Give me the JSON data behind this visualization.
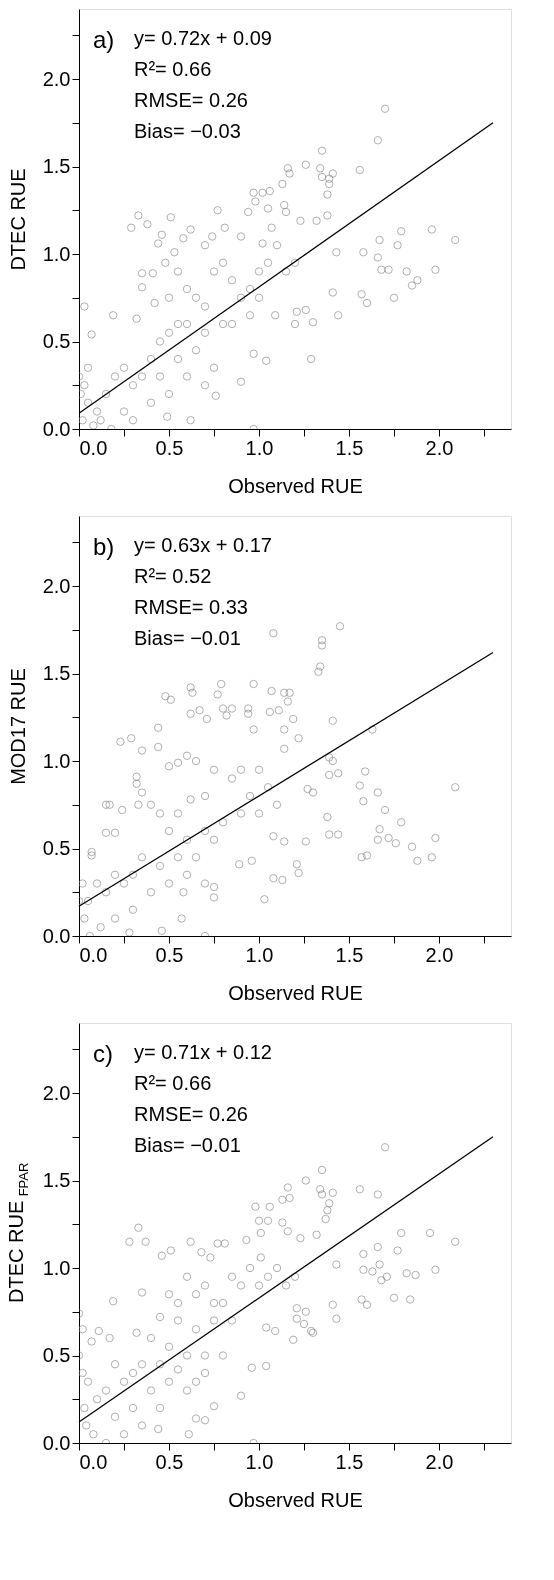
{
  "chart_data": [
    {
      "type": "scatter",
      "xlabel": "Observed RUE",
      "ylabel": "DTEC RUE",
      "xlim": [
        0,
        2.4
      ],
      "ylim": [
        0,
        2.4
      ],
      "grid": false,
      "xticks": [
        {
          "value": 0,
          "label": "0.0"
        },
        {
          "value": 0.25,
          "label": null
        },
        {
          "value": 0.5,
          "label": "0.5"
        },
        {
          "value": 0.75,
          "label": null
        },
        {
          "value": 1,
          "label": "1.0"
        },
        {
          "value": 1.25,
          "label": null
        },
        {
          "value": 1.5,
          "label": "1.5"
        },
        {
          "value": 1.75,
          "label": null
        },
        {
          "value": 2,
          "label": "2.0"
        },
        {
          "value": 2.25,
          "label": null
        }
      ],
      "yticks": [
        {
          "value": 0,
          "label": "0.0"
        },
        {
          "value": 0.25,
          "label": null
        },
        {
          "value": 0.5,
          "label": "0.5"
        },
        {
          "value": 0.75,
          "label": null
        },
        {
          "value": 1,
          "label": "1.0"
        },
        {
          "value": 1.25,
          "label": null
        },
        {
          "value": 1.5,
          "label": "1.5"
        },
        {
          "value": 1.75,
          "label": null
        },
        {
          "value": 2,
          "label": "2.0"
        },
        {
          "value": 2.25,
          "label": null
        }
      ],
      "annotations": [
        "a)",
        "y= 0.72x + 0.09",
        "R²= 0.66",
        "RMSE= 0.26",
        "Bias= −0.03"
      ],
      "series": [
        {
          "color": "#808080",
          "x": [
            1.7,
            1.66,
            1.35,
            1.26,
            1.16,
            1.34,
            1.56,
            1.41,
            1.17,
            1.35,
            1.39,
            1.39,
            1.13,
            1.38,
            0.97,
            1.02,
            1.06,
            0.98,
            1.14,
            1.05,
            0.33,
            0.77,
            0.94,
            1.15,
            0.51,
            1.38,
            1.32,
            1.23,
            0.29,
            0.38,
            0.81,
            0.62,
            1.07,
            1.96,
            1.79,
            0.46,
            0.74,
            0.58,
            0.9,
            2.09,
            1.67,
            0.44,
            1.77,
            1.02,
            1.43,
            0.53,
            1.58,
            1.66,
            1.68,
            1.72,
            1.82,
            1.98,
            1.88,
            1.85,
            1.41,
            1.57,
            1.6,
            1.75,
            1.44,
            1.29,
            1.04,
            1.2,
            1.3,
            1.26,
            1.21,
            1.09,
            0.35,
            0.41,
            0.35,
            0.42,
            0.32,
            0.07,
            0.03,
            0.19,
            0.9,
            0.97,
            0.76,
            0.62,
            0.49,
            0.97,
            0.6,
            0.65,
            0.7,
            0.75,
            0.8,
            0.85,
            0.9,
            0.55,
            0.5,
            0.45,
            0.4,
            0.35,
            0.3,
            0.25,
            0.2,
            0.15,
            0.1,
            0.05,
            0.02,
            0.0,
            0.01,
            0.03,
            0.05,
            0.08,
            0.12,
            0.18,
            0.25,
            0.3,
            0.4,
            0.5,
            0.6,
            0.7,
            0.75,
            0.65,
            0.55,
            0.45,
            0.85,
            0.95,
            1.0,
            1.05,
            1.1,
            1.15,
            1.2,
            1.0,
            0.95,
            0.8,
            0.7,
            0.6,
            0.5,
            0.48,
            0.55,
            0.7
          ],
          "values": [
            1.83,
            1.65,
            1.59,
            1.51,
            1.49,
            1.49,
            1.48,
            1.46,
            1.46,
            1.44,
            1.43,
            1.4,
            1.4,
            1.34,
            1.35,
            1.35,
            1.36,
            1.3,
            1.28,
            1.26,
            1.22,
            1.25,
            1.24,
            1.24,
            1.21,
            1.22,
            1.19,
            1.19,
            1.15,
            1.17,
            1.15,
            1.14,
            1.15,
            1.14,
            1.13,
            1.11,
            1.1,
            1.09,
            1.1,
            1.08,
            1.08,
            1.06,
            1.05,
            1.06,
            1.01,
            1.01,
            1.01,
            0.98,
            0.91,
            0.91,
            0.9,
            0.91,
            0.85,
            0.82,
            0.78,
            0.77,
            0.72,
            0.75,
            0.65,
            0.4,
            0.39,
            0.6,
            0.61,
            0.68,
            0.67,
            0.65,
            0.89,
            0.89,
            0.81,
            0.72,
            0.63,
            0.54,
            0.7,
            0.65,
            0.27,
            0.43,
            0.19,
            0.05,
            0.07,
            0.0,
            0.8,
            0.75,
            0.7,
            0.9,
            0.95,
            0.85,
            0.75,
            0.6,
            0.55,
            0.5,
            0.4,
            0.3,
            0.25,
            0.35,
            0.3,
            0.2,
            0.1,
            0.15,
            0.05,
            0.3,
            0.2,
            0.25,
            0.35,
            0.02,
            0.05,
            0.0,
            0.1,
            0.05,
            0.15,
            0.2,
            0.3,
            0.25,
            0.35,
            0.45,
            0.4,
            0.3,
            0.6,
            0.8,
            0.9,
            0.95,
            1.05,
            0.9,
            0.95,
            0.75,
            0.65,
            0.6,
            0.55,
            0.6,
            0.75,
            0.95,
            0.9,
            1.05
          ]
        },
        {
          "type": "line",
          "color": "#000000",
          "x": [
            0,
            2.3
          ],
          "values": [
            0.09,
            1.75
          ]
        }
      ]
    },
    {
      "type": "scatter",
      "xlabel": "Observed RUE",
      "ylabel": "MOD17 RUE",
      "xlim": [
        0,
        2.4
      ],
      "ylim": [
        0,
        2.4
      ],
      "grid": false,
      "xticks": [
        {
          "value": 0,
          "label": "0.0"
        },
        {
          "value": 0.25,
          "label": null
        },
        {
          "value": 0.5,
          "label": "0.5"
        },
        {
          "value": 0.75,
          "label": null
        },
        {
          "value": 1,
          "label": "1.0"
        },
        {
          "value": 1.25,
          "label": null
        },
        {
          "value": 1.5,
          "label": "1.5"
        },
        {
          "value": 1.75,
          "label": null
        },
        {
          "value": 2,
          "label": "2.0"
        },
        {
          "value": 2.25,
          "label": null
        }
      ],
      "yticks": [
        {
          "value": 0,
          "label": "0.0"
        },
        {
          "value": 0.25,
          "label": null
        },
        {
          "value": 0.5,
          "label": "0.5"
        },
        {
          "value": 0.75,
          "label": null
        },
        {
          "value": 1,
          "label": "1.0"
        },
        {
          "value": 1.25,
          "label": null
        },
        {
          "value": 1.5,
          "label": "1.5"
        },
        {
          "value": 1.75,
          "label": null
        },
        {
          "value": 2,
          "label": "2.0"
        },
        {
          "value": 2.25,
          "label": null
        }
      ],
      "annotations": [
        "b)",
        "y= 0.63x + 0.17",
        "R²= 0.52",
        "RMSE= 0.33",
        "Bias= −0.01"
      ],
      "series": [
        {
          "color": "#808080",
          "x": [
            1.45,
            1.08,
            1.35,
            1.35,
            1.34,
            1.33,
            0.79,
            0.97,
            0.62,
            0.63,
            0.48,
            0.51,
            0.77,
            1.07,
            1.14,
            1.17,
            1.16,
            0.8,
            0.85,
            0.94,
            1.11,
            0.62,
            1.06,
            0.67,
            0.94,
            0.82,
            0.71,
            1.41,
            1.19,
            0.44,
            0.97,
            1.63,
            1.14,
            0.23,
            0.29,
            1.22,
            0.35,
            0.44,
            1.14,
            1.39,
            1.41,
            1.44,
            1.59,
            1.39,
            1.56,
            1.66,
            1.58,
            1.7,
            1.79,
            1.67,
            1.66,
            1.72,
            1.76,
            1.98,
            1.85,
            1.88,
            1.96,
            1.57,
            1.6,
            2.09,
            1.38,
            1.39,
            1.44,
            1.27,
            1.3,
            1.26,
            1.21,
            1.22,
            1.13,
            1.08,
            1.03,
            1.08,
            1.14,
            0.89,
            0.96,
            0.75,
            0.57,
            0.46,
            0.7,
            0.15,
            0.17,
            0.15,
            0.2,
            0.24,
            0.07,
            0.07,
            0.32,
            0.32,
            0.35,
            0.33,
            0.5,
            0.55,
            0.6,
            0.65,
            0.75,
            0.85,
            0.9,
            1.0,
            1.05,
            0.95,
            0.7,
            0.62,
            0.55,
            0.45,
            0.4,
            0.5,
            0.6,
            0.7,
            0.8,
            0.9,
            1.0,
            1.1,
            0.75,
            0.65,
            0.55,
            0.45,
            0.35,
            0.3,
            0.25,
            0.2,
            0.15,
            0.1,
            0.05,
            0.02,
            0.0,
            0.03,
            0.06,
            0.12,
            0.2,
            0.3,
            0.4,
            0.5,
            0.6,
            0.7,
            0.75,
            0.58,
            0.28
          ],
          "values": [
            1.77,
            1.73,
            1.69,
            1.66,
            1.54,
            1.51,
            1.44,
            1.44,
            1.42,
            1.39,
            1.37,
            1.35,
            1.38,
            1.4,
            1.39,
            1.39,
            1.34,
            1.3,
            1.3,
            1.3,
            1.29,
            1.27,
            1.28,
            1.29,
            1.27,
            1.26,
            1.24,
            1.23,
            1.24,
            1.19,
            1.18,
            1.18,
            1.18,
            1.11,
            1.13,
            1.13,
            1.06,
            1.08,
            1.07,
            1.02,
            1.0,
            0.93,
            0.94,
            0.92,
            0.86,
            0.82,
            0.77,
            0.72,
            0.65,
            0.61,
            0.55,
            0.56,
            0.53,
            0.56,
            0.51,
            0.43,
            0.45,
            0.45,
            0.46,
            0.85,
            0.68,
            0.58,
            0.58,
            0.84,
            0.82,
            0.54,
            0.41,
            0.36,
            0.32,
            0.33,
            0.21,
            0.57,
            0.54,
            0.41,
            0.43,
            0.22,
            0.1,
            0.03,
            0.0,
            0.75,
            0.75,
            0.59,
            0.59,
            0.72,
            0.48,
            0.46,
            0.91,
            0.87,
            0.82,
            0.75,
            0.97,
            0.99,
            1.03,
            1.0,
            0.95,
            0.9,
            0.95,
            0.95,
            0.85,
            0.8,
            0.8,
            0.78,
            0.7,
            0.7,
            0.75,
            0.6,
            0.55,
            0.6,
            0.65,
            0.7,
            0.7,
            0.75,
            0.55,
            0.45,
            0.45,
            0.4,
            0.45,
            0.35,
            0.3,
            0.35,
            0.25,
            0.3,
            0.2,
            0.3,
            0.2,
            0.1,
            0.0,
            0.05,
            0.1,
            0.15,
            0.25,
            0.3,
            0.35,
            0.3,
            0.28,
            0.25,
            0.02
          ]
        },
        {
          "type": "line",
          "color": "#000000",
          "x": [
            0,
            2.3
          ],
          "values": [
            0.17,
            1.62
          ]
        }
      ]
    },
    {
      "type": "scatter",
      "xlabel": "Observed RUE",
      "ylabel": "DTEC RUE$_{FPAR}$",
      "xlim": [
        0,
        2.4
      ],
      "ylim": [
        0,
        2.4
      ],
      "grid": false,
      "xticks": [
        {
          "value": 0,
          "label": "0.0"
        },
        {
          "value": 0.25,
          "label": null
        },
        {
          "value": 0.5,
          "label": "0.5"
        },
        {
          "value": 0.75,
          "label": null
        },
        {
          "value": 1,
          "label": "1.0"
        },
        {
          "value": 1.25,
          "label": null
        },
        {
          "value": 1.5,
          "label": "1.5"
        },
        {
          "value": 1.75,
          "label": null
        },
        {
          "value": 2,
          "label": "2.0"
        },
        {
          "value": 2.25,
          "label": null
        }
      ],
      "yticks": [
        {
          "value": 0,
          "label": "0.0"
        },
        {
          "value": 0.25,
          "label": null
        },
        {
          "value": 0.5,
          "label": "0.5"
        },
        {
          "value": 0.75,
          "label": null
        },
        {
          "value": 1,
          "label": "1.0"
        },
        {
          "value": 1.25,
          "label": null
        },
        {
          "value": 1.5,
          "label": "1.5"
        },
        {
          "value": 1.75,
          "label": null
        },
        {
          "value": 2,
          "label": "2.0"
        },
        {
          "value": 2.25,
          "label": null
        }
      ],
      "annotations": [
        "c)",
        "y= 0.71x + 0.12",
        "R²= 0.66",
        "RMSE= 0.26",
        "Bias= −0.01"
      ],
      "series": [
        {
          "color": "#808080",
          "x": [
            1.7,
            1.35,
            1.26,
            1.16,
            1.56,
            1.34,
            1.41,
            1.66,
            1.35,
            1.13,
            1.17,
            1.39,
            0.98,
            1.06,
            1.38,
            1.37,
            1.0,
            1.05,
            0.33,
            1.13,
            1.01,
            1.16,
            1.79,
            1.95,
            1.32,
            0.28,
            0.37,
            0.62,
            0.77,
            0.81,
            0.93,
            2.09,
            1.23,
            1.66,
            1.77,
            0.51,
            0.68,
            1.58,
            0.46,
            0.73,
            1.01,
            1.43,
            1.67,
            1.58,
            1.63,
            1.98,
            1.82,
            1.87,
            1.71,
            1.68,
            1.75,
            1.84,
            1.57,
            1.6,
            1.41,
            1.43,
            1.21,
            1.26,
            1.21,
            1.25,
            1.29,
            1.3,
            1.19,
            1.09,
            1.04,
            1.04,
            0.96,
            0.9,
            0.75,
            0.7,
            0.65,
            0.61,
            0.97,
            0.44,
            0.19,
            0.11,
            0.02,
            0.07,
            0.17,
            0.35,
            0.32,
            0.0,
            0.5,
            0.55,
            0.6,
            0.65,
            0.7,
            0.75,
            0.8,
            0.85,
            0.9,
            0.95,
            1.0,
            1.05,
            1.1,
            1.15,
            1.2,
            0.85,
            0.75,
            0.65,
            0.55,
            0.45,
            0.4,
            0.5,
            0.6,
            0.7,
            0.8,
            0.55,
            0.45,
            0.35,
            0.3,
            0.25,
            0.2,
            0.15,
            0.1,
            0.05,
            0.03,
            0.0,
            0.02,
            0.04,
            0.08,
            0.15,
            0.2,
            0.3,
            0.4,
            0.5,
            0.6,
            0.65,
            0.7,
            0.45,
            0.35,
            0.25
          ],
          "values": [
            1.69,
            1.56,
            1.5,
            1.46,
            1.45,
            1.45,
            1.43,
            1.42,
            1.42,
            1.39,
            1.4,
            1.37,
            1.35,
            1.35,
            1.33,
            1.28,
            1.27,
            1.27,
            1.23,
            1.26,
            1.2,
            1.21,
            1.2,
            1.2,
            1.19,
            1.15,
            1.15,
            1.15,
            1.14,
            1.14,
            1.16,
            1.15,
            1.17,
            1.12,
            1.1,
            1.1,
            1.09,
            1.08,
            1.07,
            1.06,
            1.06,
            1.02,
            1.02,
            0.99,
            0.98,
            0.99,
            0.97,
            0.96,
            0.95,
            0.93,
            0.83,
            0.82,
            0.82,
            0.79,
            0.79,
            0.71,
            0.77,
            0.75,
            0.71,
            0.68,
            0.64,
            0.63,
            0.59,
            0.64,
            0.66,
            0.44,
            0.43,
            0.27,
            0.21,
            0.13,
            0.14,
            0.05,
            0.0,
            0.08,
            0.81,
            0.64,
            0.65,
            0.58,
            0.6,
            0.86,
            0.63,
            0.74,
            0.85,
            0.8,
            0.95,
            0.85,
            0.9,
            0.8,
            0.8,
            0.95,
            0.9,
            1.0,
            0.9,
            0.95,
            1.0,
            0.9,
            0.95,
            0.7,
            0.7,
            0.65,
            0.7,
            0.72,
            0.6,
            0.55,
            0.5,
            0.5,
            0.5,
            0.42,
            0.45,
            0.45,
            0.4,
            0.35,
            0.45,
            0.3,
            0.25,
            0.35,
            0.2,
            0.5,
            0.4,
            0.1,
            0.05,
            0.0,
            0.15,
            0.2,
            0.3,
            0.35,
            0.3,
            0.35,
            0.4,
            0.2,
            0.1,
            0.05
          ]
        },
        {
          "type": "line",
          "color": "#000000",
          "x": [
            0,
            2.3
          ],
          "values": [
            0.12,
            1.75
          ]
        }
      ]
    }
  ]
}
